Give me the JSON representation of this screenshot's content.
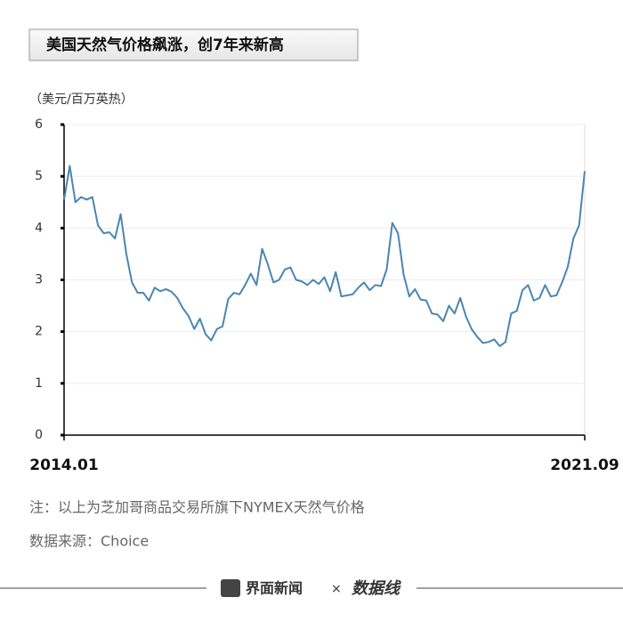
{
  "chart_data": {
    "type": "line",
    "title": "美国天然气价格飙涨，创7年来新高",
    "y_label": "（美元/百万英热）",
    "note": "注：以上为芝加哥商品交易所旗下NYMEX天然气价格",
    "source": "数据来源：Choice",
    "footer": [
      "界面新闻",
      "×",
      "数据线"
    ],
    "categories": [
      "2014.01",
      null,
      null,
      null,
      null,
      null,
      null,
      null,
      null,
      null,
      null,
      null,
      null,
      null,
      null,
      null,
      null,
      null,
      null,
      null,
      null,
      null,
      null,
      null,
      null,
      null,
      null,
      null,
      null,
      null,
      null,
      null,
      null,
      null,
      null,
      null,
      null,
      null,
      null,
      null,
      null,
      null,
      null,
      null,
      null,
      null,
      null,
      null,
      null,
      null,
      null,
      null,
      null,
      null,
      null,
      null,
      null,
      null,
      null,
      null,
      null,
      null,
      null,
      null,
      null,
      null,
      null,
      null,
      null,
      null,
      null,
      null,
      null,
      null,
      null,
      null,
      null,
      null,
      null,
      null,
      null,
      null,
      null,
      null,
      null,
      null,
      null,
      null,
      null,
      null,
      null,
      null,
      "2021.09"
    ],
    "series": [
      {
        "name": "NYMEX天然气价格",
        "color": "#4a86b0",
        "values": [
          4.55,
          5.2,
          4.5,
          4.6,
          4.55,
          4.6,
          4.05,
          3.9,
          3.92,
          3.8,
          4.27,
          3.5,
          2.95,
          2.75,
          2.75,
          2.6,
          2.85,
          2.78,
          2.82,
          2.77,
          2.65,
          2.45,
          2.3,
          2.05,
          2.25,
          1.95,
          1.83,
          2.05,
          2.1,
          2.63,
          2.75,
          2.72,
          2.9,
          3.12,
          2.9,
          3.6,
          3.3,
          2.95,
          3.0,
          3.2,
          3.24,
          3.0,
          2.97,
          2.9,
          3.0,
          2.92,
          3.05,
          2.78,
          3.15,
          2.68,
          2.7,
          2.72,
          2.85,
          2.95,
          2.8,
          2.9,
          2.88,
          3.2,
          4.1,
          3.9,
          3.1,
          2.68,
          2.82,
          2.62,
          2.6,
          2.35,
          2.33,
          2.2,
          2.5,
          2.35,
          2.65,
          2.3,
          2.05,
          1.9,
          1.78,
          1.8,
          1.85,
          1.72,
          1.8,
          2.35,
          2.4,
          2.8,
          2.9,
          2.6,
          2.65,
          2.9,
          2.68,
          2.7,
          2.95,
          3.25,
          3.8,
          4.05,
          5.1
        ]
      }
    ],
    "ylim": [
      0,
      6
    ],
    "yticks": [
      0,
      1,
      2,
      3,
      4,
      5,
      6
    ],
    "grid": true
  }
}
